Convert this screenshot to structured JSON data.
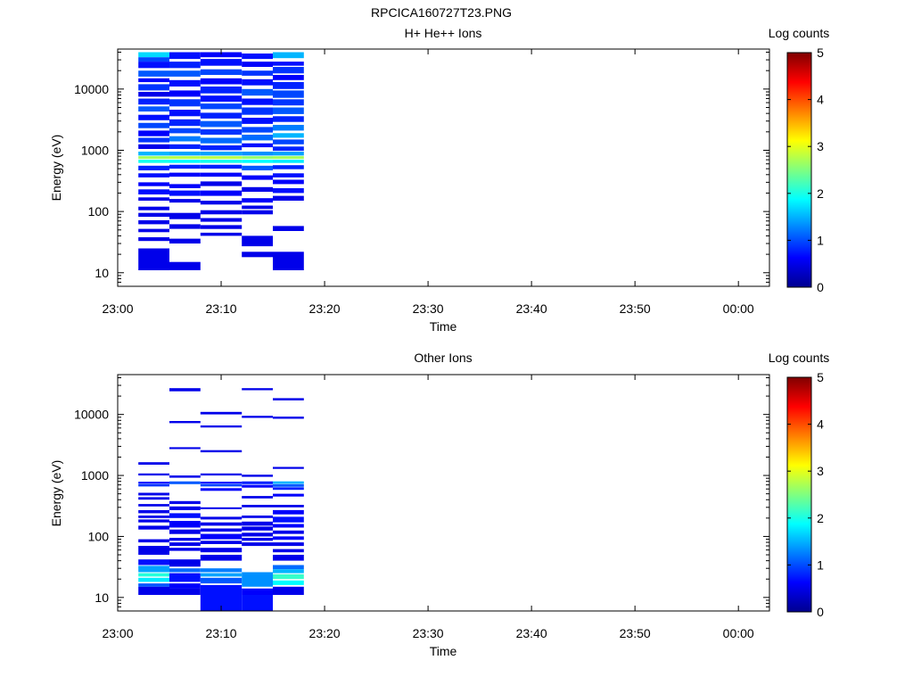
{
  "page_title": "RPCICA160727T23.PNG",
  "chart_data": [
    {
      "type": "heatmap",
      "title": "H+ He++ Ions",
      "xlabel": "Time",
      "ylabel": "Energy (eV)",
      "x_ticks": [
        "23:00",
        "23:10",
        "23:20",
        "23:30",
        "23:40",
        "23:50",
        "00:00"
      ],
      "x_range": [
        "23:00",
        "00:03"
      ],
      "y_scale": "log",
      "y_ticks": [
        10,
        100,
        1000,
        10000
      ],
      "y_range": [
        6,
        45000
      ],
      "colorbar": {
        "label": "Log counts",
        "range": [
          0,
          5
        ],
        "ticks": [
          0,
          1,
          2,
          3,
          4,
          5
        ]
      },
      "time_columns": [
        {
          "start": "23:02",
          "end": "23:05"
        },
        {
          "start": "23:05",
          "end": "23:08"
        },
        {
          "start": "23:08",
          "end": "23:12"
        },
        {
          "start": "23:12",
          "end": "23:15"
        },
        {
          "start": "23:15",
          "end": "23:18"
        }
      ],
      "cells": [
        [
          0,
          40000,
          33000,
          1.6
        ],
        [
          0,
          33000,
          28000,
          0.8
        ],
        [
          0,
          28000,
          22000,
          0.5
        ],
        [
          0,
          20000,
          16000,
          0.9
        ],
        [
          0,
          15000,
          13000,
          0.4
        ],
        [
          0,
          12000,
          9500,
          0.7
        ],
        [
          0,
          9000,
          7500,
          0.3
        ],
        [
          0,
          7000,
          5600,
          0.6
        ],
        [
          0,
          5200,
          4300,
          0.9
        ],
        [
          0,
          3800,
          3100,
          0.5
        ],
        [
          0,
          2800,
          2300,
          0.8
        ],
        [
          0,
          2100,
          1700,
          0.4
        ],
        [
          0,
          1600,
          1350,
          0.7
        ],
        [
          0,
          1250,
          1050,
          0.3
        ],
        [
          0,
          950,
          820,
          1.4
        ],
        [
          0,
          800,
          720,
          2.7
        ],
        [
          0,
          700,
          620,
          1.9
        ],
        [
          0,
          560,
          470,
          0.6
        ],
        [
          0,
          420,
          360,
          0.5
        ],
        [
          0,
          300,
          260,
          0.4
        ],
        [
          0,
          230,
          190,
          0.5
        ],
        [
          0,
          170,
          150,
          0.3
        ],
        [
          0,
          120,
          105,
          0.3
        ],
        [
          0,
          95,
          82,
          0.3
        ],
        [
          0,
          72,
          62,
          0.3
        ],
        [
          0,
          52,
          46,
          0.3
        ],
        [
          0,
          38,
          33,
          0.3
        ],
        [
          0,
          25,
          11,
          0.3
        ],
        [
          1,
          40000,
          31000,
          0.5
        ],
        [
          1,
          28000,
          22000,
          0.6
        ],
        [
          1,
          20000,
          16000,
          0.9
        ],
        [
          1,
          14000,
          11000,
          0.5
        ],
        [
          1,
          9500,
          7500,
          0.4
        ],
        [
          1,
          6800,
          5200,
          0.7
        ],
        [
          1,
          4600,
          3600,
          0.5
        ],
        [
          1,
          3200,
          2500,
          0.6
        ],
        [
          1,
          2300,
          1900,
          0.8
        ],
        [
          1,
          1700,
          1400,
          1.1
        ],
        [
          1,
          1250,
          1050,
          0.6
        ],
        [
          1,
          950,
          820,
          1.3
        ],
        [
          1,
          800,
          720,
          2.8
        ],
        [
          1,
          700,
          620,
          1.8
        ],
        [
          1,
          580,
          500,
          0.6
        ],
        [
          1,
          430,
          370,
          0.4
        ],
        [
          1,
          280,
          240,
          0.4
        ],
        [
          1,
          220,
          180,
          0.5
        ],
        [
          1,
          160,
          140,
          0.3
        ],
        [
          1,
          95,
          75,
          0.3
        ],
        [
          1,
          62,
          52,
          0.3
        ],
        [
          1,
          36,
          30,
          0.3
        ],
        [
          1,
          15,
          11,
          0.3
        ],
        [
          2,
          40000,
          33000,
          0.4
        ],
        [
          2,
          31000,
          24000,
          0.5
        ],
        [
          2,
          21000,
          17000,
          0.8
        ],
        [
          2,
          15000,
          12000,
          0.4
        ],
        [
          2,
          11000,
          8500,
          0.6
        ],
        [
          2,
          7800,
          6200,
          0.5
        ],
        [
          2,
          5800,
          4700,
          0.8
        ],
        [
          2,
          4100,
          3300,
          0.6
        ],
        [
          2,
          3000,
          2400,
          0.9
        ],
        [
          2,
          2200,
          1800,
          0.7
        ],
        [
          2,
          1600,
          1300,
          1.0
        ],
        [
          2,
          1200,
          1000,
          0.6
        ],
        [
          2,
          950,
          820,
          1.3
        ],
        [
          2,
          800,
          720,
          2.8
        ],
        [
          2,
          700,
          620,
          1.9
        ],
        [
          2,
          580,
          500,
          0.6
        ],
        [
          2,
          430,
          370,
          0.4
        ],
        [
          2,
          310,
          260,
          0.3
        ],
        [
          2,
          220,
          180,
          0.4
        ],
        [
          2,
          150,
          130,
          0.3
        ],
        [
          2,
          105,
          90,
          0.3
        ],
        [
          2,
          78,
          68,
          0.3
        ],
        [
          2,
          60,
          52,
          0.3
        ],
        [
          2,
          45,
          40,
          0.3
        ],
        [
          3,
          38000,
          31000,
          0.5
        ],
        [
          3,
          28000,
          23000,
          0.4
        ],
        [
          3,
          20000,
          16500,
          0.7
        ],
        [
          3,
          14500,
          11500,
          0.5
        ],
        [
          3,
          10000,
          7800,
          0.9
        ],
        [
          3,
          7000,
          5500,
          0.5
        ],
        [
          3,
          5000,
          3800,
          0.7
        ],
        [
          3,
          3400,
          2700,
          0.5
        ],
        [
          3,
          2400,
          1950,
          0.8
        ],
        [
          3,
          1800,
          1450,
          1.0
        ],
        [
          3,
          1300,
          1120,
          0.5
        ],
        [
          3,
          950,
          820,
          1.2
        ],
        [
          3,
          800,
          720,
          2.6
        ],
        [
          3,
          700,
          620,
          1.8
        ],
        [
          3,
          560,
          470,
          0.9
        ],
        [
          3,
          390,
          330,
          0.4
        ],
        [
          3,
          250,
          210,
          0.3
        ],
        [
          3,
          165,
          140,
          0.4
        ],
        [
          3,
          125,
          110,
          0.3
        ],
        [
          3,
          105,
          90,
          0.3
        ],
        [
          3,
          40,
          27,
          0.3
        ],
        [
          3,
          22,
          18,
          0.3
        ],
        [
          4,
          40000,
          32000,
          1.4
        ],
        [
          4,
          28000,
          24000,
          0.5
        ],
        [
          4,
          23000,
          18000,
          0.7
        ],
        [
          4,
          17000,
          14000,
          0.4
        ],
        [
          4,
          13000,
          10000,
          0.6
        ],
        [
          4,
          9500,
          7200,
          0.8
        ],
        [
          4,
          6800,
          5400,
          0.7
        ],
        [
          4,
          5000,
          3900,
          0.9
        ],
        [
          4,
          3600,
          2900,
          0.6
        ],
        [
          4,
          2600,
          2100,
          1.1
        ],
        [
          4,
          1900,
          1600,
          1.4
        ],
        [
          4,
          1500,
          1250,
          0.8
        ],
        [
          4,
          1150,
          980,
          0.6
        ],
        [
          4,
          950,
          820,
          1.3
        ],
        [
          4,
          800,
          720,
          2.7
        ],
        [
          4,
          700,
          620,
          1.7
        ],
        [
          4,
          570,
          490,
          0.6
        ],
        [
          4,
          420,
          360,
          0.5
        ],
        [
          4,
          330,
          280,
          0.4
        ],
        [
          4,
          240,
          200,
          0.5
        ],
        [
          4,
          180,
          150,
          0.3
        ],
        [
          4,
          58,
          48,
          0.3
        ],
        [
          4,
          22,
          11,
          0.3
        ]
      ]
    },
    {
      "type": "heatmap",
      "title": "Other Ions",
      "xlabel": "Time",
      "ylabel": "Energy (eV)",
      "x_ticks": [
        "23:00",
        "23:10",
        "23:20",
        "23:30",
        "23:40",
        "23:50",
        "00:00"
      ],
      "x_range": [
        "23:00",
        "00:03"
      ],
      "y_scale": "log",
      "y_ticks": [
        10,
        100,
        1000,
        10000
      ],
      "y_range": [
        6,
        45000
      ],
      "colorbar": {
        "label": "Log counts",
        "range": [
          0,
          5
        ],
        "ticks": [
          0,
          1,
          2,
          3,
          4,
          5
        ]
      },
      "time_columns": [
        {
          "start": "23:02",
          "end": "23:05"
        },
        {
          "start": "23:05",
          "end": "23:08"
        },
        {
          "start": "23:08",
          "end": "23:12"
        },
        {
          "start": "23:12",
          "end": "23:15"
        },
        {
          "start": "23:15",
          "end": "23:18"
        }
      ],
      "cells": [
        [
          0,
          1650,
          1500,
          0.3
        ],
        [
          0,
          1080,
          1000,
          0.3
        ],
        [
          0,
          790,
          730,
          0.5
        ],
        [
          0,
          720,
          660,
          0.7
        ],
        [
          0,
          520,
          470,
          0.3
        ],
        [
          0,
          440,
          400,
          0.3
        ],
        [
          0,
          340,
          310,
          0.3
        ],
        [
          0,
          270,
          240,
          0.3
        ],
        [
          0,
          220,
          200,
          0.3
        ],
        [
          0,
          190,
          170,
          0.3
        ],
        [
          0,
          150,
          130,
          0.3
        ],
        [
          0,
          90,
          80,
          0.3
        ],
        [
          0,
          70,
          50,
          0.3
        ],
        [
          0,
          42,
          34,
          0.5
        ],
        [
          0,
          33,
          26,
          1.3
        ],
        [
          0,
          25,
          22,
          2.0
        ],
        [
          0,
          21,
          18,
          1.7
        ],
        [
          0,
          17,
          15,
          0.9
        ],
        [
          0,
          15,
          11,
          0.3
        ],
        [
          1,
          27000,
          24000,
          0.3
        ],
        [
          1,
          7800,
          7200,
          0.3
        ],
        [
          1,
          2900,
          2700,
          0.3
        ],
        [
          1,
          1000,
          920,
          0.3
        ],
        [
          1,
          800,
          720,
          0.9
        ],
        [
          1,
          380,
          340,
          0.3
        ],
        [
          1,
          310,
          270,
          0.3
        ],
        [
          1,
          240,
          200,
          0.5
        ],
        [
          1,
          180,
          140,
          0.4
        ],
        [
          1,
          130,
          110,
          0.3
        ],
        [
          1,
          95,
          85,
          0.3
        ],
        [
          1,
          80,
          70,
          0.3
        ],
        [
          1,
          65,
          58,
          0.3
        ],
        [
          1,
          42,
          32,
          0.3
        ],
        [
          1,
          30,
          26,
          1.0
        ],
        [
          1,
          25,
          18,
          0.5
        ],
        [
          1,
          17,
          14,
          0.4
        ],
        [
          1,
          14,
          11,
          0.3
        ],
        [
          2,
          11000,
          10000,
          0.3
        ],
        [
          2,
          6600,
          6100,
          0.3
        ],
        [
          2,
          2600,
          2400,
          0.3
        ],
        [
          2,
          1080,
          1000,
          0.3
        ],
        [
          2,
          790,
          730,
          0.5
        ],
        [
          2,
          720,
          660,
          0.8
        ],
        [
          2,
          620,
          560,
          0.4
        ],
        [
          2,
          300,
          280,
          0.3
        ],
        [
          2,
          210,
          190,
          0.3
        ],
        [
          2,
          170,
          150,
          0.3
        ],
        [
          2,
          135,
          120,
          0.3
        ],
        [
          2,
          110,
          90,
          0.4
        ],
        [
          2,
          85,
          75,
          0.3
        ],
        [
          2,
          65,
          55,
          0.3
        ],
        [
          2,
          50,
          40,
          0.3
        ],
        [
          2,
          30,
          26,
          1.1
        ],
        [
          2,
          25,
          22,
          1.3
        ],
        [
          2,
          21,
          17,
          0.9
        ],
        [
          2,
          16,
          13,
          0.5
        ],
        [
          2,
          13,
          6,
          0.5
        ],
        [
          3,
          27000,
          25000,
          0.3
        ],
        [
          3,
          9500,
          8800,
          0.3
        ],
        [
          3,
          1030,
          950,
          0.3
        ],
        [
          3,
          800,
          720,
          0.6
        ],
        [
          3,
          700,
          630,
          0.4
        ],
        [
          3,
          460,
          420,
          0.3
        ],
        [
          3,
          330,
          300,
          0.3
        ],
        [
          3,
          220,
          200,
          0.3
        ],
        [
          3,
          175,
          150,
          0.3
        ],
        [
          3,
          145,
          125,
          0.3
        ],
        [
          3,
          115,
          100,
          0.3
        ],
        [
          3,
          95,
          85,
          0.3
        ],
        [
          3,
          80,
          70,
          0.3
        ],
        [
          3,
          26,
          15,
          1.2
        ],
        [
          3,
          14,
          11,
          0.4
        ],
        [
          3,
          11,
          6,
          0.5
        ],
        [
          4,
          18500,
          17000,
          0.3
        ],
        [
          4,
          9200,
          8500,
          0.3
        ],
        [
          4,
          1380,
          1280,
          0.3
        ],
        [
          4,
          800,
          730,
          1.4
        ],
        [
          4,
          720,
          650,
          0.9
        ],
        [
          4,
          640,
          580,
          0.6
        ],
        [
          4,
          500,
          450,
          0.4
        ],
        [
          4,
          330,
          300,
          0.3
        ],
        [
          4,
          270,
          230,
          0.4
        ],
        [
          4,
          210,
          170,
          0.5
        ],
        [
          4,
          160,
          140,
          0.4
        ],
        [
          4,
          125,
          110,
          0.3
        ],
        [
          4,
          100,
          88,
          0.4
        ],
        [
          4,
          80,
          70,
          0.3
        ],
        [
          4,
          62,
          55,
          0.3
        ],
        [
          4,
          50,
          40,
          0.3
        ],
        [
          4,
          34,
          29,
          1.0
        ],
        [
          4,
          29,
          25,
          1.4
        ],
        [
          4,
          24,
          20,
          2.1
        ],
        [
          4,
          19,
          16,
          1.8
        ],
        [
          4,
          15,
          11,
          0.3
        ]
      ]
    }
  ]
}
